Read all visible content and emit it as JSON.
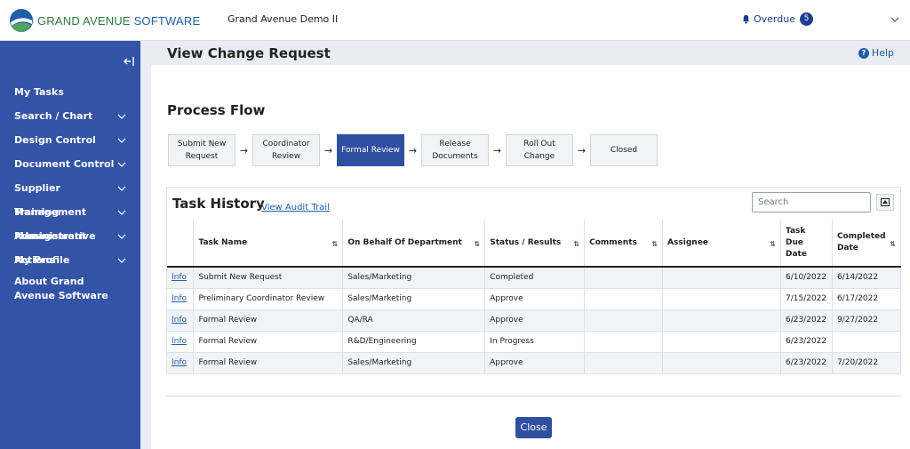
{
  "header": {
    "logo_text_brand": "GRAND AVENUE ",
    "logo_text_product": "SOFTWARE",
    "instance_name": "Grand Avenue Demo II",
    "overdue_label": "Overdue",
    "overdue_count": "5"
  },
  "sidebar": {
    "collapse_icon": "collapse-left-icon",
    "items": [
      {
        "label": "My Tasks",
        "has_chevron": false
      },
      {
        "label": "Search / Chart",
        "has_chevron": true
      },
      {
        "label": "Design Control",
        "has_chevron": true
      },
      {
        "label": "Document Control",
        "has_chevron": true
      },
      {
        "label": "Supplier Management",
        "has_chevron": true
      },
      {
        "label": "Training Management",
        "has_chevron": true
      },
      {
        "label": "Administrative Actions",
        "has_chevron": true
      },
      {
        "label": "My Profile",
        "has_chevron": true
      },
      {
        "label": "About Grand Avenue Software",
        "has_chevron": false
      }
    ]
  },
  "page": {
    "title": "View Change Request",
    "help_label": "Help"
  },
  "process_flow": {
    "title": "Process Flow",
    "steps": [
      {
        "label": "Submit New Request",
        "active": false
      },
      {
        "label": "Coordinator Review",
        "active": false
      },
      {
        "label": "Formal Review",
        "active": true
      },
      {
        "label": "Release Documents",
        "active": false
      },
      {
        "label": "Roll Out Change",
        "active": false
      },
      {
        "label": "Closed",
        "active": false
      }
    ],
    "arrow": "→"
  },
  "task_history": {
    "title": "Task History",
    "audit_link": "View Audit Trail",
    "search_placeholder": "Search",
    "columns": [
      "",
      "Task Name",
      "On Behalf Of Department",
      "Status / Results",
      "Comments",
      "Assignee",
      "Task Due Date",
      "Completed Date"
    ],
    "rows": [
      {
        "info": "Info",
        "task": "Submit New Request",
        "dept": "Sales/Marketing",
        "status": "Completed",
        "comments": "",
        "assignee": "",
        "due": "6/10/2022",
        "completed": "6/14/2022"
      },
      {
        "info": "Info",
        "task": "Preliminary Coordinator Review",
        "dept": "Sales/Marketing",
        "status": "Approve",
        "comments": "",
        "assignee": "",
        "due": "7/15/2022",
        "completed": "6/17/2022"
      },
      {
        "info": "Info",
        "task": "Formal Review",
        "dept": "QA/RA",
        "status": "Approve",
        "comments": "",
        "assignee": "",
        "due": "6/23/2022",
        "completed": "9/27/2022"
      },
      {
        "info": "Info",
        "task": "Formal Review",
        "dept": "R&D/Engineering",
        "status": "In Progress",
        "comments": "",
        "assignee": "",
        "due": "6/23/2022",
        "completed": ""
      },
      {
        "info": "Info",
        "task": "Formal Review",
        "dept": "Sales/Marketing",
        "status": "Approve",
        "comments": "",
        "assignee": "",
        "due": "6/23/2022",
        "completed": "7/20/2022"
      }
    ]
  },
  "footer": {
    "close_label": "Close"
  },
  "colors": {
    "sidebar": "#3354a6",
    "accent": "#2f4fa0",
    "link": "#1f5ea8",
    "logo_green": "#2e7a42"
  }
}
